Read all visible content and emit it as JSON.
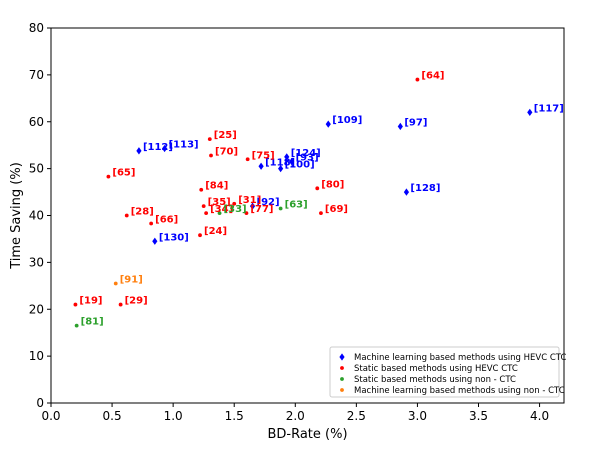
{
  "chart_data": {
    "type": "scatter",
    "xlabel": "BD-Rate (%)",
    "ylabel": "Time Saving (%)",
    "xlim": [
      0.0,
      4.2
    ],
    "ylim": [
      0,
      80
    ],
    "xticks": [
      "0.0",
      "0.5",
      "1.0",
      "1.5",
      "2.0",
      "2.5",
      "3.0",
      "3.5",
      "4.0"
    ],
    "yticks": [
      "0",
      "10",
      "20",
      "30",
      "40",
      "50",
      "60",
      "70",
      "80"
    ],
    "grid": false,
    "legend_position": "bottom-right",
    "series": [
      {
        "name": "Machine learning based methods using HEVC CTC",
        "color": "#0000ff",
        "marker": "diamond",
        "points": [
          {
            "x": 0.72,
            "y": 53.8,
            "label": "[112]"
          },
          {
            "x": 0.93,
            "y": 54.3,
            "label": "[113]"
          },
          {
            "x": 0.85,
            "y": 34.5,
            "label": "[130]"
          },
          {
            "x": 1.65,
            "y": 42.0,
            "label": "[92]"
          },
          {
            "x": 1.72,
            "y": 50.5,
            "label": "[118]"
          },
          {
            "x": 1.88,
            "y": 50.0,
            "label": "[100]"
          },
          {
            "x": 1.93,
            "y": 52.5,
            "label": "[124]"
          },
          {
            "x": 1.97,
            "y": 51.5,
            "label": "[93]"
          },
          {
            "x": 2.27,
            "y": 59.5,
            "label": "[109]"
          },
          {
            "x": 2.86,
            "y": 59.0,
            "label": "[97]"
          },
          {
            "x": 2.91,
            "y": 45.0,
            "label": "[128]"
          },
          {
            "x": 3.92,
            "y": 62.0,
            "label": "[117]"
          }
        ]
      },
      {
        "name": "Static based methods using HEVC CTC",
        "color": "#ff0000",
        "marker": "circle",
        "points": [
          {
            "x": 0.47,
            "y": 48.3,
            "label": "[65]"
          },
          {
            "x": 0.62,
            "y": 40.0,
            "label": "[28]"
          },
          {
            "x": 0.82,
            "y": 38.3,
            "label": "[66]"
          },
          {
            "x": 0.2,
            "y": 21.0,
            "label": "[19]"
          },
          {
            "x": 0.57,
            "y": 21.0,
            "label": "[29]"
          },
          {
            "x": 1.22,
            "y": 35.8,
            "label": "[24]"
          },
          {
            "x": 1.23,
            "y": 45.5,
            "label": "[84]"
          },
          {
            "x": 1.25,
            "y": 42.0,
            "label": "[35]"
          },
          {
            "x": 1.27,
            "y": 40.5,
            "label": "[34]"
          },
          {
            "x": 1.3,
            "y": 56.3,
            "label": "[25]"
          },
          {
            "x": 1.31,
            "y": 52.8,
            "label": "[70]"
          },
          {
            "x": 1.5,
            "y": 42.5,
            "label": "[31]"
          },
          {
            "x": 1.6,
            "y": 40.5,
            "label": "[77]"
          },
          {
            "x": 1.61,
            "y": 52.0,
            "label": "[75]"
          },
          {
            "x": 2.18,
            "y": 45.8,
            "label": "[80]"
          },
          {
            "x": 2.21,
            "y": 40.5,
            "label": "[69]"
          },
          {
            "x": 3.0,
            "y": 69.0,
            "label": "[64]"
          }
        ]
      },
      {
        "name": "Static based methods using non - CTC",
        "color": "#2ca02c",
        "marker": "circle",
        "points": [
          {
            "x": 0.21,
            "y": 16.5,
            "label": "[81]"
          },
          {
            "x": 1.38,
            "y": 40.5,
            "label": "[33]"
          },
          {
            "x": 1.88,
            "y": 41.5,
            "label": "[63]"
          }
        ]
      },
      {
        "name": "Machine learning based methods using non - CTC",
        "color": "#ff7f0e",
        "marker": "circle",
        "points": [
          {
            "x": 0.53,
            "y": 25.5,
            "label": "[91]"
          }
        ]
      }
    ]
  }
}
